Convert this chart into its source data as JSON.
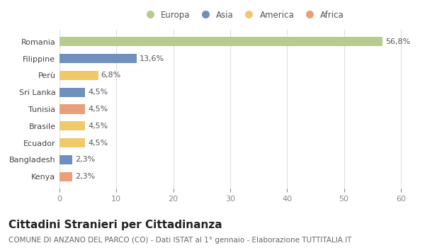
{
  "countries": [
    "Romania",
    "Filippine",
    "Perù",
    "Sri Lanka",
    "Tunisia",
    "Brasile",
    "Ecuador",
    "Bangladesh",
    "Kenya"
  ],
  "values": [
    56.8,
    13.6,
    6.8,
    4.5,
    4.5,
    4.5,
    4.5,
    2.3,
    2.3
  ],
  "labels": [
    "56,8%",
    "13,6%",
    "6,8%",
    "4,5%",
    "4,5%",
    "4,5%",
    "4,5%",
    "2,3%",
    "2,3%"
  ],
  "colors": [
    "#b5cc8e",
    "#6f90be",
    "#f0c96c",
    "#6f90be",
    "#e8a07a",
    "#f0c96c",
    "#f0c96c",
    "#6f90be",
    "#e8a07a"
  ],
  "legend_labels": [
    "Europa",
    "Asia",
    "America",
    "Africa"
  ],
  "legend_colors": [
    "#b5cc8e",
    "#6f90be",
    "#f0c96c",
    "#e8a07a"
  ],
  "xlim": [
    0,
    62
  ],
  "xticks": [
    0,
    10,
    20,
    30,
    40,
    50,
    60
  ],
  "title": "Cittadini Stranieri per Cittadinanza",
  "subtitle": "COMUNE DI ANZANO DEL PARCO (CO) - Dati ISTAT al 1° gennaio - Elaborazione TUTTITALIA.IT",
  "bg_color": "#ffffff",
  "grid_color": "#e0e0e0",
  "bar_height": 0.55,
  "title_fontsize": 11,
  "subtitle_fontsize": 7.5,
  "label_fontsize": 8,
  "tick_fontsize": 8,
  "legend_fontsize": 8.5
}
